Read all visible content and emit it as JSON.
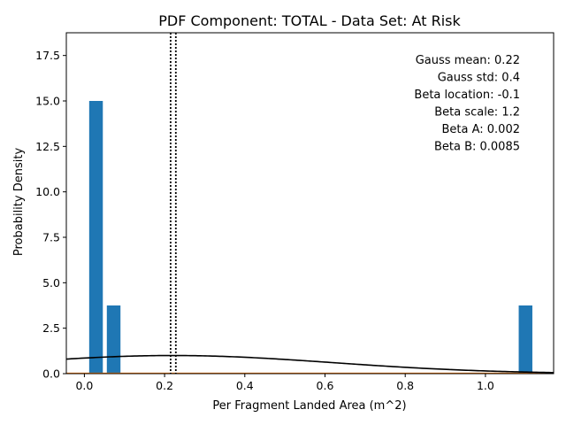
{
  "chart_data": {
    "type": "bar",
    "title": "PDF Component: TOTAL - Data Set: At Risk",
    "xlabel": "Per Fragment Landed Area (m^2)",
    "ylabel": "Probability Density",
    "xlim": [
      -0.045,
      1.17
    ],
    "ylim": [
      0,
      18.75
    ],
    "xticks": [
      0.0,
      0.2,
      0.4,
      0.6,
      0.8,
      1.0
    ],
    "xtick_labels": [
      "0.0",
      "0.2",
      "0.4",
      "0.6",
      "0.8",
      "1.0"
    ],
    "yticks": [
      0.0,
      2.5,
      5.0,
      7.5,
      10.0,
      12.5,
      15.0,
      17.5
    ],
    "ytick_labels": [
      "0.0",
      "2.5",
      "5.0",
      "7.5",
      "10.0",
      "12.5",
      "15.0",
      "17.5"
    ],
    "bars": {
      "color": "#1f77b4",
      "x_start": [
        0.012,
        0.056,
        1.083
      ],
      "x_end": [
        0.046,
        0.09,
        1.117
      ],
      "values": [
        15.0,
        3.75,
        3.75
      ]
    },
    "gauss_curve": {
      "color": "#000000",
      "mean": 0.22,
      "std": 0.4
    },
    "beta_curve": {
      "color": "#ff7f0e",
      "value": 0.02
    },
    "mean_lines": {
      "style": "dotted",
      "color": "#000000",
      "x": [
        0.215,
        0.228
      ]
    },
    "annotations": [
      "Gauss mean: 0.22",
      "Gauss std: 0.4",
      "Beta location: -0.1",
      "Beta scale: 1.2",
      "Beta A: 0.002",
      "Beta B: 0.0085"
    ],
    "annotation_placement": "top-right",
    "grid": false,
    "legend": false
  }
}
